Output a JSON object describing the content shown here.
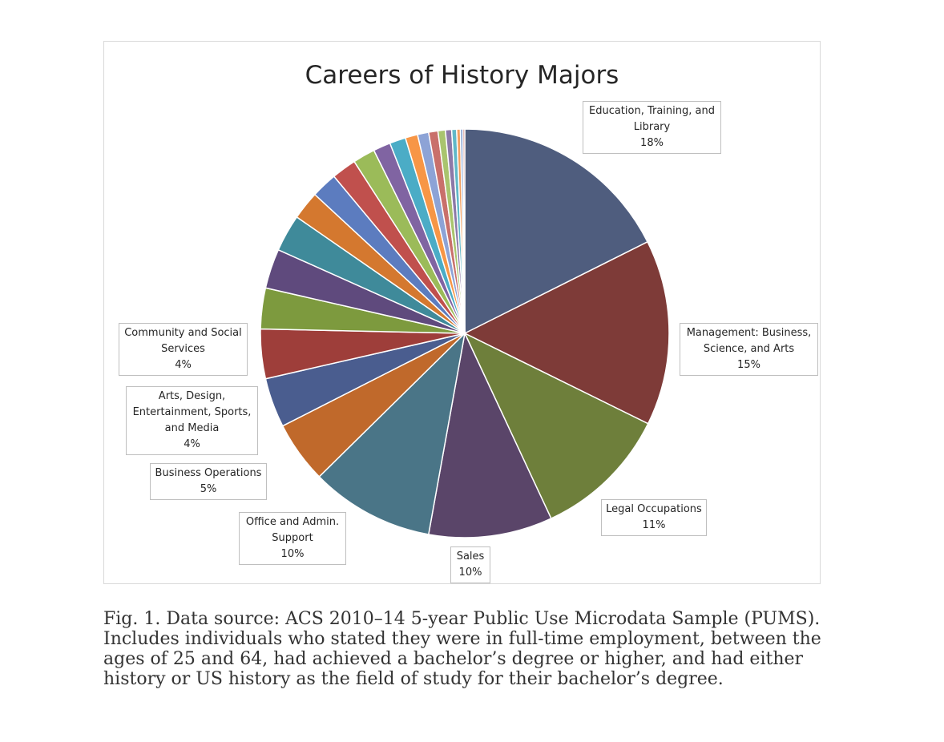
{
  "chart_data": {
    "type": "pie",
    "title": "Careers of History Majors",
    "start_angle_deg": 0,
    "direction": "clockwise",
    "slices": [
      {
        "name": "Education, Training, and Library",
        "label": "Education, Training, and\nLibrary",
        "pct_label": "18%",
        "value": 18,
        "color": "#4F5D7E"
      },
      {
        "name": "Management: Business, Science, and Arts",
        "label": "Management: Business,\nScience, and Arts",
        "pct_label": "15%",
        "value": 15,
        "color": "#7E3B38"
      },
      {
        "name": "Legal Occupations",
        "label": "Legal Occupations",
        "pct_label": "11%",
        "value": 11,
        "color": "#6E7F3B"
      },
      {
        "name": "Sales",
        "label": "Sales",
        "pct_label": "10%",
        "value": 10,
        "color": "#5A4569"
      },
      {
        "name": "Office and Admin. Support",
        "label": "Office and Admin.\nSupport",
        "pct_label": "10%",
        "value": 10,
        "color": "#4A7587"
      },
      {
        "name": "Business Operations",
        "label": "Business Operations",
        "pct_label": "5%",
        "value": 5,
        "color": "#C0692B"
      },
      {
        "name": "Arts, Design, Entertainment, Sports, and Media",
        "label": "Arts, Design,\nEntertainment, Sports,\nand Media",
        "pct_label": "4%",
        "value": 4,
        "color": "#4A5D8F"
      },
      {
        "name": "Community and Social Services",
        "label": "Community and Social\nServices",
        "pct_label": "4%",
        "value": 4,
        "color": "#9E3E3A"
      },
      {
        "name": "",
        "value": 3.3,
        "color": "#7D9A3E"
      },
      {
        "name": "",
        "value": 3.2,
        "color": "#5F4A7D"
      },
      {
        "name": "",
        "value": 3.0,
        "color": "#3F8A9A"
      },
      {
        "name": "",
        "value": 2.3,
        "color": "#D4782F"
      },
      {
        "name": "",
        "value": 2.1,
        "color": "#5C7CBF"
      },
      {
        "name": "",
        "value": 2.0,
        "color": "#C0504D"
      },
      {
        "name": "",
        "value": 1.8,
        "color": "#9BBB59"
      },
      {
        "name": "",
        "value": 1.4,
        "color": "#8064A2"
      },
      {
        "name": "",
        "value": 1.3,
        "color": "#4BACC6"
      },
      {
        "name": "",
        "value": 1.0,
        "color": "#F79646"
      },
      {
        "name": "",
        "value": 0.9,
        "color": "#8DA3D6"
      },
      {
        "name": "",
        "value": 0.75,
        "color": "#C9706B"
      },
      {
        "name": "",
        "value": 0.6,
        "color": "#A9C46E"
      },
      {
        "name": "",
        "value": 0.5,
        "color": "#8C79A8"
      },
      {
        "name": "",
        "value": 0.4,
        "color": "#60B8C8"
      },
      {
        "name": "",
        "value": 0.3,
        "color": "#F2A062"
      },
      {
        "name": "",
        "value": 0.2,
        "color": "#7E9BD0"
      },
      {
        "name": "",
        "value": 0.15,
        "color": "#D08682"
      }
    ]
  },
  "caption": "Fig. 1. Data source: ACS 2010–14 5-year Public Use Microdata Sample (PUMS). Includes individuals who stated they were in full-time employment, between the ages of 25 and 64, had achieved a bachelor’s degree or higher, and had either history or US history as the field of study for their bachelor’s degree."
}
